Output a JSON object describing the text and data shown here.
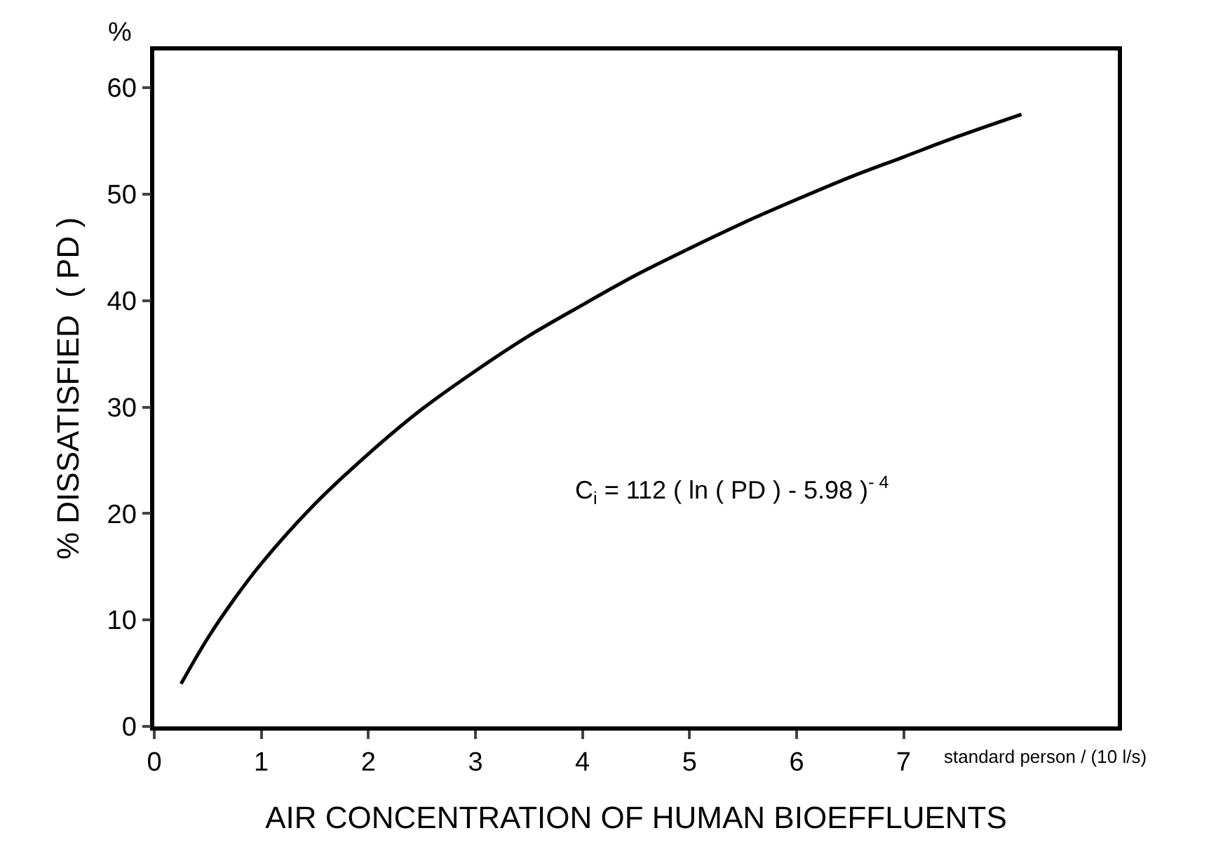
{
  "chart_data": {
    "type": "line",
    "xlabel": "AIR CONCENTRATION OF HUMAN BIOEFFLUENTS",
    "ylabel": "% DISSATISFIED  ( PD )",
    "x": [
      0.25,
      0.5,
      0.75,
      1,
      1.5,
      2,
      2.5,
      3,
      3.5,
      4,
      4.5,
      5,
      5.5,
      6,
      6.5,
      7,
      7.5,
      8.1
    ],
    "series": [
      {
        "color": "#000000",
        "values": [
          4.0,
          8.3,
          12.0,
          15.3,
          20.9,
          25.6,
          29.8,
          33.4,
          36.7,
          39.6,
          42.4,
          44.9,
          47.3,
          49.5,
          51.6,
          53.5,
          55.4,
          57.5
        ]
      }
    ],
    "xlim": [
      0,
      9
    ],
    "xticks": [
      0,
      1,
      2,
      3,
      4,
      5,
      6,
      7
    ],
    "ylim": [
      0,
      63.5
    ],
    "yticks": [
      0,
      10,
      20,
      30,
      40,
      50,
      60
    ],
    "legend": false,
    "marker": "none",
    "line_style": "solid",
    "annotations": [
      "%",
      "standard person / (10 l/s)",
      "C$_{i}$ = 112 ( ln ( PD ) - 5.98 )$^{- 4}$"
    ]
  }
}
